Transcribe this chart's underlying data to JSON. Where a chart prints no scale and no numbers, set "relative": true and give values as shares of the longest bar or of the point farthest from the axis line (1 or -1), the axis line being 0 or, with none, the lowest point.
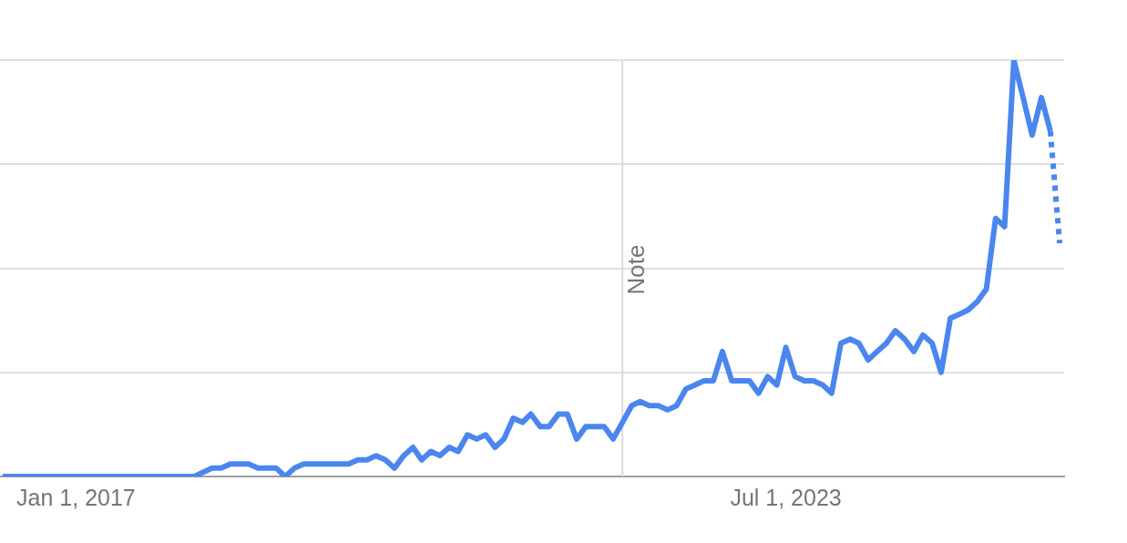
{
  "chart_data": {
    "type": "line",
    "relative": true,
    "grid": "y",
    "marker": "none",
    "tick_labels": "x",
    "xlim": [
      "2016-04-22",
      "2026-01-16"
    ],
    "xticks": [
      {
        "value": "2017-01-01",
        "label": "Jan 1, 2017"
      },
      {
        "value": "2023-07-01",
        "label": "Jul 1, 2023"
      }
    ],
    "ref_lines": [
      {
        "axis": "x",
        "value": "2022-01",
        "label": "Note",
        "color": "#d9d9d9"
      }
    ],
    "series": [
      {
        "color": "#4a86ee",
        "line_style": "solid",
        "x": [
          "2016-05",
          "2016-06",
          "2016-07",
          "2016-08",
          "2016-09",
          "2016-10",
          "2016-11",
          "2016-12",
          "2017-01",
          "2017-02",
          "2017-03",
          "2017-04",
          "2017-05",
          "2017-06",
          "2017-07",
          "2017-08",
          "2017-09",
          "2017-10",
          "2017-11",
          "2017-12",
          "2018-01",
          "2018-02",
          "2018-03",
          "2018-04",
          "2018-05",
          "2018-06",
          "2018-07",
          "2018-08",
          "2018-09",
          "2018-10",
          "2018-11",
          "2018-12",
          "2019-01",
          "2019-02",
          "2019-03",
          "2019-04",
          "2019-05",
          "2019-06",
          "2019-07",
          "2019-08",
          "2019-09",
          "2019-10",
          "2019-11",
          "2019-12",
          "2020-01",
          "2020-02",
          "2020-03",
          "2020-04",
          "2020-05",
          "2020-06",
          "2020-07",
          "2020-08",
          "2020-09",
          "2020-10",
          "2020-11",
          "2020-12",
          "2021-01",
          "2021-02",
          "2021-03",
          "2021-04",
          "2021-05",
          "2021-06",
          "2021-07",
          "2021-08",
          "2021-09",
          "2021-10",
          "2021-11",
          "2021-12",
          "2022-01",
          "2022-02",
          "2022-03",
          "2022-04",
          "2022-05",
          "2022-06",
          "2022-07",
          "2022-08",
          "2022-09",
          "2022-10",
          "2022-11",
          "2022-12",
          "2023-01",
          "2023-02",
          "2023-03",
          "2023-04",
          "2023-05",
          "2023-06",
          "2023-07",
          "2023-08",
          "2023-09",
          "2023-10",
          "2023-11",
          "2023-12",
          "2024-01",
          "2024-02",
          "2024-03",
          "2024-04",
          "2024-05",
          "2024-06",
          "2024-07",
          "2024-08",
          "2024-09",
          "2024-10",
          "2024-11",
          "2024-12",
          "2025-01",
          "2025-02",
          "2025-03",
          "2025-04",
          "2025-05",
          "2025-06",
          "2025-07",
          "2025-08",
          "2025-09",
          "2025-10",
          "2025-11",
          "2025-12"
        ],
        "values": [
          0,
          0,
          0,
          0,
          0,
          0,
          0,
          0,
          0,
          0,
          0,
          0,
          0,
          0,
          0,
          0,
          0,
          0,
          0,
          0,
          0,
          0,
          0.01,
          0.02,
          0.02,
          0.03,
          0.03,
          0.03,
          0.02,
          0.02,
          0.02,
          0,
          0.02,
          0.03,
          0.03,
          0.03,
          0.03,
          0.03,
          0.03,
          0.04,
          0.04,
          0.05,
          0.04,
          0.02,
          0.05,
          0.07,
          0.04,
          0.06,
          0.05,
          0.07,
          0.06,
          0.1,
          0.09,
          0.1,
          0.07,
          0.09,
          0.14,
          0.13,
          0.15,
          0.12,
          0.12,
          0.15,
          0.15,
          0.09,
          0.12,
          0.12,
          0.12,
          0.09,
          0.13,
          0.17,
          0.18,
          0.17,
          0.17,
          0.16,
          0.17,
          0.21,
          0.22,
          0.23,
          0.23,
          0.3,
          0.23,
          0.23,
          0.23,
          0.2,
          0.24,
          0.22,
          0.31,
          0.24,
          0.23,
          0.23,
          0.22,
          0.2,
          0.32,
          0.33,
          0.32,
          0.28,
          0.3,
          0.32,
          0.35,
          0.33,
          0.3,
          0.34,
          0.32,
          0.25,
          0.38,
          0.39,
          0.4,
          0.42,
          0.45,
          0.62,
          0.6,
          1,
          0.91,
          0.82,
          0.91,
          0.83
        ]
      },
      {
        "color": "#4a86ee",
        "line_style": "dotted",
        "x": [
          "2025-12",
          "2026-01"
        ],
        "values": [
          0.83,
          0.56
        ]
      }
    ]
  }
}
